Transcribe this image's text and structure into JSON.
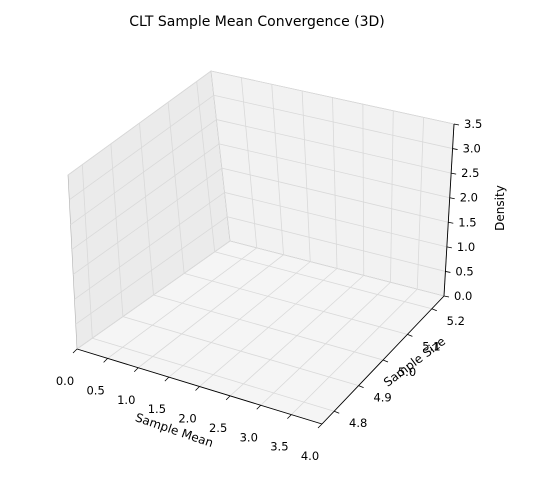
{
  "chart_data": {
    "type": "scatter",
    "projection": "3d",
    "title": "CLT Sample Mean Convergence (3D)",
    "xlabel": "Sample Mean",
    "ylabel": "Sample Size",
    "zlabel": "Density",
    "xlim": [
      0.0,
      4.0
    ],
    "ylim": [
      4.75,
      5.25
    ],
    "zlim": [
      0.0,
      3.5
    ],
    "xticks": [
      "0.0",
      "0.5",
      "1.0",
      "1.5",
      "2.0",
      "2.5",
      "3.0",
      "3.5",
      "4.0"
    ],
    "yticks": [
      "4.8",
      "4.9",
      "5.0",
      "5.1",
      "5.2"
    ],
    "zticks": [
      "0.0",
      "0.5",
      "1.0",
      "1.5",
      "2.0",
      "2.5",
      "3.0",
      "3.5"
    ],
    "series": [],
    "grid": true,
    "colors": {
      "pane_back": "#f2f2f2",
      "pane_side": "#ebebeb",
      "pane_floor": "#f5f5f5",
      "grid": "#d9d9d9",
      "edge": "#b0b0b0"
    }
  }
}
